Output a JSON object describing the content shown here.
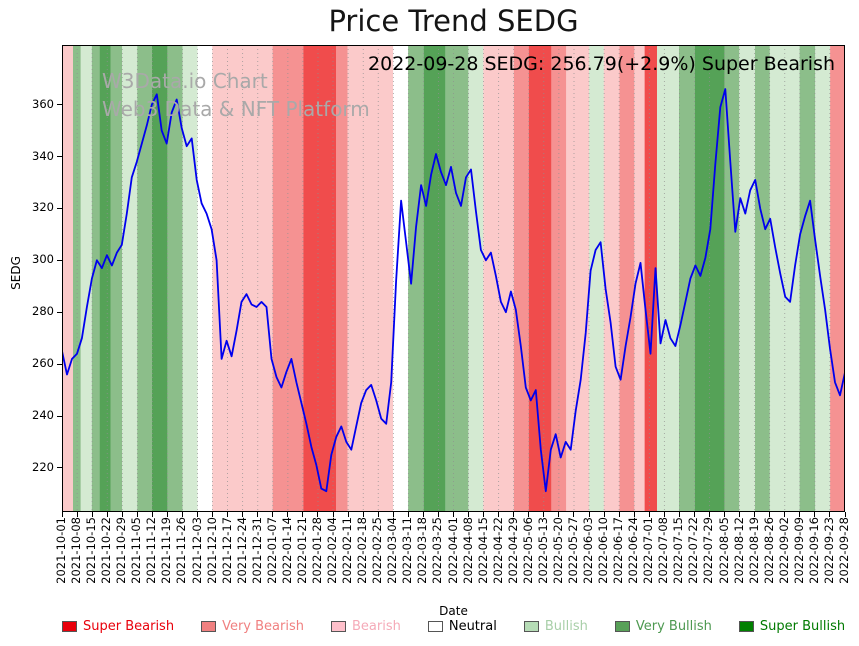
{
  "title": "Price Trend SEDG",
  "annotation": "2022-09-28 SEDG: 256.79(+2.9%) Super Bearish",
  "watermark": {
    "line1": "W3Data.io Chart",
    "line2": "Web3 Data & NFT Platform"
  },
  "chart_data": {
    "type": "line",
    "title": "Price Trend SEDG",
    "xlabel": "Date",
    "ylabel": "SEDG",
    "ylim": [
      203,
      383
    ],
    "y_ticks": [
      220,
      240,
      260,
      280,
      300,
      320,
      340,
      360
    ],
    "grid": "vertical-dotted",
    "x_tick_labels": [
      "2021-10-01",
      "2021-10-08",
      "2021-10-15",
      "2021-10-22",
      "2021-10-29",
      "2021-11-05",
      "2021-11-12",
      "2021-11-19",
      "2021-11-26",
      "2021-12-03",
      "2021-12-10",
      "2021-12-17",
      "2021-12-24",
      "2021-12-31",
      "2022-01-07",
      "2022-01-14",
      "2022-01-21",
      "2022-01-28",
      "2022-02-04",
      "2022-02-11",
      "2022-02-18",
      "2022-02-25",
      "2022-03-04",
      "2022-03-11",
      "2022-03-18",
      "2022-03-25",
      "2022-04-01",
      "2022-04-08",
      "2022-04-15",
      "2022-04-22",
      "2022-04-29",
      "2022-05-06",
      "2022-05-13",
      "2022-05-20",
      "2022-05-27",
      "2022-06-03",
      "2022-06-10",
      "2022-06-17",
      "2022-06-24",
      "2022-07-01",
      "2022-07-08",
      "2022-07-15",
      "2022-07-22",
      "2022-07-29",
      "2022-08-05",
      "2022-08-12",
      "2022-08-19",
      "2022-08-26",
      "2022-09-02",
      "2022-09-09",
      "2022-09-16",
      "2022-09-23",
      "2022-09-28"
    ],
    "series": [
      {
        "name": "SEDG price",
        "color": "#0000ee",
        "values": [
          265,
          256,
          262,
          264,
          270,
          282,
          293,
          300,
          297,
          302,
          298,
          303,
          306,
          318,
          332,
          338,
          345,
          352,
          360,
          364,
          350,
          345,
          357,
          362,
          351,
          344,
          347,
          331,
          322,
          318,
          312,
          300,
          262,
          269,
          263,
          273,
          284,
          287,
          283,
          282,
          284,
          282,
          262,
          255,
          251,
          257,
          262,
          253,
          245,
          237,
          228,
          221,
          212,
          211,
          225,
          232,
          236,
          230,
          227,
          236,
          245,
          250,
          252,
          246,
          239,
          237,
          253,
          292,
          323,
          307,
          291,
          313,
          329,
          321,
          333,
          341,
          334,
          329,
          336,
          326,
          321,
          332,
          335,
          319,
          304,
          300,
          303,
          294,
          284,
          280,
          288,
          281,
          267,
          251,
          246,
          250,
          227,
          211,
          227,
          233,
          224,
          230,
          227,
          242,
          254,
          272,
          296,
          304,
          307,
          289,
          276,
          259,
          254,
          267,
          278,
          291,
          299,
          281,
          264,
          297,
          268,
          277,
          270,
          267,
          275,
          284,
          293,
          298,
          294,
          301,
          312,
          337,
          359,
          366,
          338,
          311,
          324,
          318,
          327,
          331,
          320,
          312,
          316,
          305,
          295,
          286,
          284,
          298,
          310,
          317,
          323,
          308,
          294,
          281,
          266,
          253,
          248,
          256.79
        ]
      }
    ],
    "last_point": {
      "date": "2022-09-28",
      "price": 256.79,
      "change_pct": "+2.9%",
      "sentiment": "Super Bearish"
    },
    "band_colors": {
      "Super Bearish": "#f04c4c",
      "Very Bearish": "#f59292",
      "Bearish": "#fbcaca",
      "Neutral": "#ffffff",
      "Bullish": "#d4ead2",
      "Very Bullish": "#8cbe8a",
      "Super Bullish": "#55a257"
    },
    "sentiment_bands": [
      {
        "start": 0.0,
        "end": 0.014,
        "sentiment": "Bearish"
      },
      {
        "start": 0.014,
        "end": 0.024,
        "sentiment": "Very Bullish"
      },
      {
        "start": 0.024,
        "end": 0.038,
        "sentiment": "Bullish"
      },
      {
        "start": 0.038,
        "end": 0.048,
        "sentiment": "Very Bullish"
      },
      {
        "start": 0.048,
        "end": 0.062,
        "sentiment": "Super Bullish"
      },
      {
        "start": 0.062,
        "end": 0.077,
        "sentiment": "Very Bullish"
      },
      {
        "start": 0.077,
        "end": 0.096,
        "sentiment": "Bullish"
      },
      {
        "start": 0.096,
        "end": 0.115,
        "sentiment": "Very Bullish"
      },
      {
        "start": 0.115,
        "end": 0.135,
        "sentiment": "Super Bullish"
      },
      {
        "start": 0.135,
        "end": 0.154,
        "sentiment": "Very Bullish"
      },
      {
        "start": 0.154,
        "end": 0.173,
        "sentiment": "Bullish"
      },
      {
        "start": 0.173,
        "end": 0.192,
        "sentiment": "Neutral"
      },
      {
        "start": 0.192,
        "end": 0.269,
        "sentiment": "Bearish"
      },
      {
        "start": 0.269,
        "end": 0.308,
        "sentiment": "Very Bearish"
      },
      {
        "start": 0.308,
        "end": 0.35,
        "sentiment": "Super Bearish"
      },
      {
        "start": 0.35,
        "end": 0.365,
        "sentiment": "Very Bearish"
      },
      {
        "start": 0.365,
        "end": 0.423,
        "sentiment": "Bearish"
      },
      {
        "start": 0.423,
        "end": 0.442,
        "sentiment": "Neutral"
      },
      {
        "start": 0.442,
        "end": 0.462,
        "sentiment": "Very Bullish"
      },
      {
        "start": 0.462,
        "end": 0.49,
        "sentiment": "Super Bullish"
      },
      {
        "start": 0.49,
        "end": 0.519,
        "sentiment": "Very Bullish"
      },
      {
        "start": 0.519,
        "end": 0.538,
        "sentiment": "Bullish"
      },
      {
        "start": 0.538,
        "end": 0.577,
        "sentiment": "Bearish"
      },
      {
        "start": 0.577,
        "end": 0.596,
        "sentiment": "Very Bearish"
      },
      {
        "start": 0.596,
        "end": 0.625,
        "sentiment": "Super Bearish"
      },
      {
        "start": 0.625,
        "end": 0.644,
        "sentiment": "Very Bearish"
      },
      {
        "start": 0.644,
        "end": 0.673,
        "sentiment": "Bearish"
      },
      {
        "start": 0.673,
        "end": 0.692,
        "sentiment": "Bullish"
      },
      {
        "start": 0.692,
        "end": 0.712,
        "sentiment": "Bearish"
      },
      {
        "start": 0.712,
        "end": 0.731,
        "sentiment": "Very Bearish"
      },
      {
        "start": 0.731,
        "end": 0.744,
        "sentiment": "Bearish"
      },
      {
        "start": 0.744,
        "end": 0.76,
        "sentiment": "Super Bearish"
      },
      {
        "start": 0.76,
        "end": 0.788,
        "sentiment": "Bullish"
      },
      {
        "start": 0.788,
        "end": 0.808,
        "sentiment": "Very Bullish"
      },
      {
        "start": 0.808,
        "end": 0.846,
        "sentiment": "Super Bullish"
      },
      {
        "start": 0.846,
        "end": 0.865,
        "sentiment": "Very Bullish"
      },
      {
        "start": 0.865,
        "end": 0.885,
        "sentiment": "Bullish"
      },
      {
        "start": 0.885,
        "end": 0.904,
        "sentiment": "Very Bullish"
      },
      {
        "start": 0.904,
        "end": 0.942,
        "sentiment": "Bullish"
      },
      {
        "start": 0.942,
        "end": 0.962,
        "sentiment": "Very Bullish"
      },
      {
        "start": 0.962,
        "end": 0.981,
        "sentiment": "Bullish"
      },
      {
        "start": 0.981,
        "end": 1.0,
        "sentiment": "Very Bearish"
      }
    ]
  },
  "legend": {
    "items": [
      {
        "label": "Super Bearish",
        "color": "#e8000b",
        "text_color": "#e8000b"
      },
      {
        "label": "Very Bearish",
        "color": "#f08080",
        "text_color": "#f08080"
      },
      {
        "label": "Bearish",
        "color": "#ffc0cb",
        "text_color": "#f5aab8"
      },
      {
        "label": "Neutral",
        "color": "#ffffff",
        "text_color": "#000000"
      },
      {
        "label": "Bullish",
        "color": "#b6dcb6",
        "text_color": "#a8cfa8"
      },
      {
        "label": "Very Bullish",
        "color": "#58a058",
        "text_color": "#4d9950"
      },
      {
        "label": "Super Bullish",
        "color": "#018001",
        "text_color": "#017a01"
      }
    ]
  }
}
